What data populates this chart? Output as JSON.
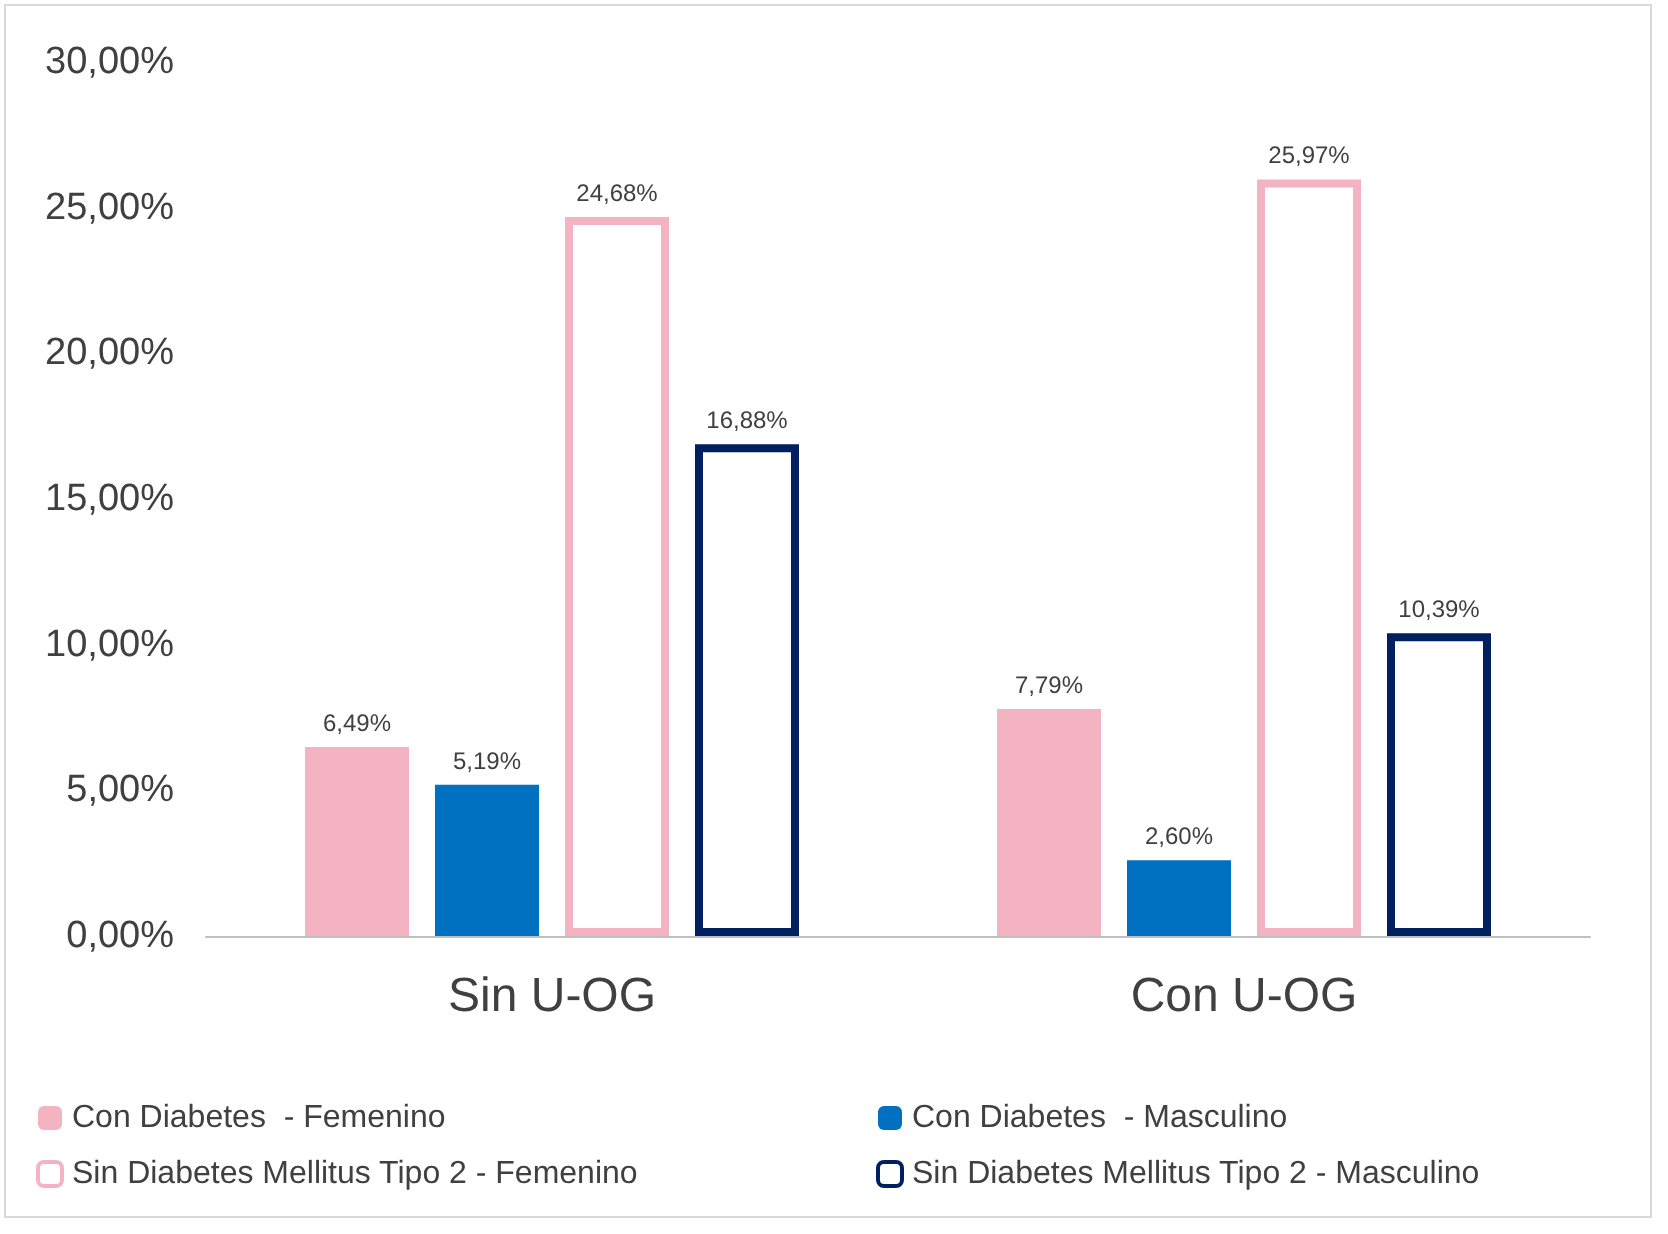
{
  "chart_data": {
    "type": "bar",
    "categories": [
      "Sin U-OG",
      "Con U-OG"
    ],
    "series": [
      {
        "name": "Con Diabetes  - Femenino",
        "color": "#f4b3c2",
        "values": [
          6.49,
          7.79
        ],
        "value_labels": [
          "6,49%",
          "7,79%"
        ]
      },
      {
        "name": "Con Diabetes  - Masculino",
        "color": "#0070c0",
        "values": [
          5.19,
          2.6
        ],
        "value_labels": [
          "5,19%",
          "2,60%"
        ]
      },
      {
        "name": "Sin Diabetes Mellitus Tipo 2 - Femenino",
        "color": "#f4b3c2",
        "values": [
          24.68,
          25.97
        ],
        "value_labels": [
          "24,68%",
          "25,97%"
        ]
      },
      {
        "name": "Sin Diabetes Mellitus Tipo 2 - Masculino",
        "color": "#002060",
        "values": [
          16.88,
          10.39
        ],
        "value_labels": [
          "16,88%",
          "10,39%"
        ]
      }
    ],
    "ylim": [
      0,
      30
    ],
    "yticks": [
      {
        "value": 0,
        "label": "0,00%"
      },
      {
        "value": 5,
        "label": "5,00%"
      },
      {
        "value": 10,
        "label": "10,00%"
      },
      {
        "value": 15,
        "label": "15,00%"
      },
      {
        "value": 20,
        "label": "20,00%"
      },
      {
        "value": 25,
        "label": "25,00%"
      },
      {
        "value": 30,
        "label": "30,00%"
      }
    ],
    "grid": false,
    "legend": "bottom"
  }
}
